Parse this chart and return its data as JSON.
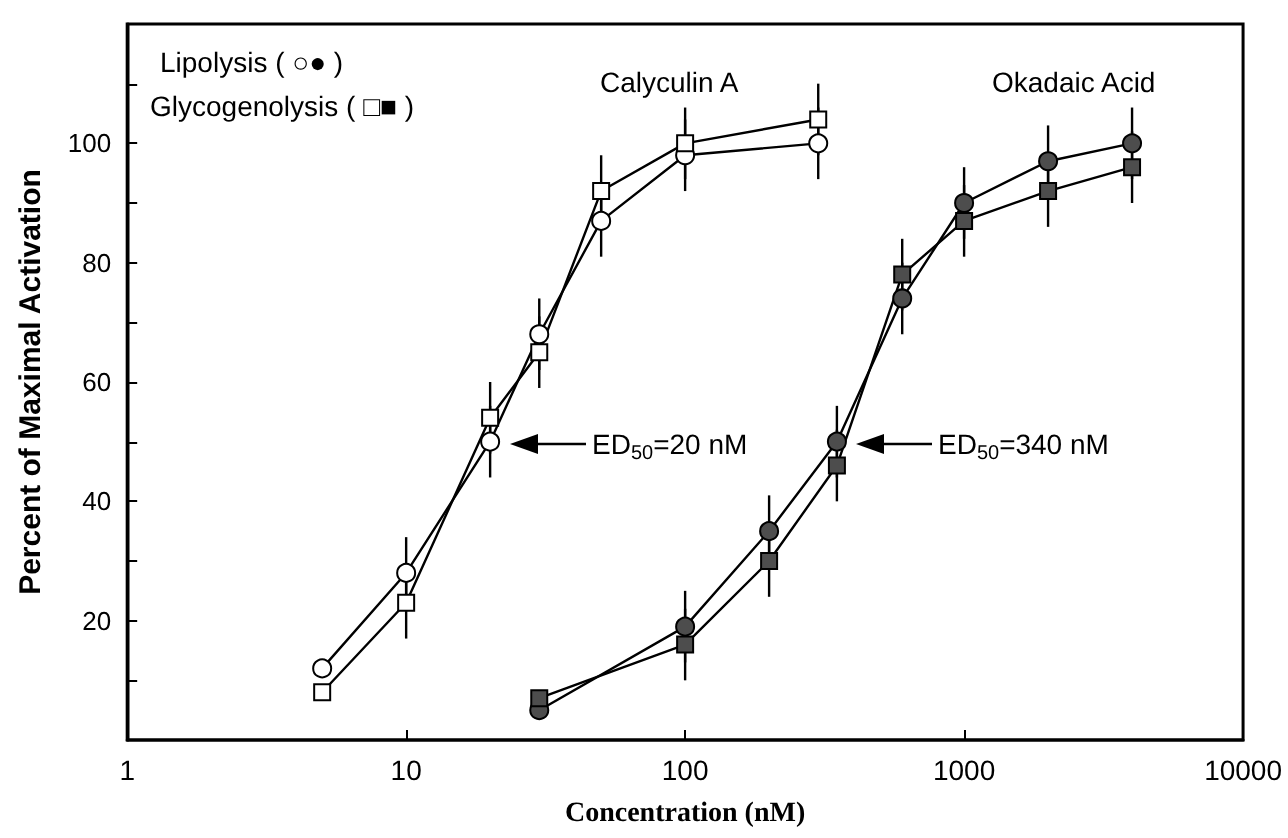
{
  "chart_data": {
    "type": "line",
    "xlabel": "Concentration (nM)",
    "ylabel": "Percent of Maximal Activation",
    "log": "x",
    "xlim": [
      1,
      10000
    ],
    "xticks": [
      1,
      10,
      100,
      1000,
      10000
    ],
    "ylim": [
      0,
      120
    ],
    "yticks": [
      {
        "value": 10,
        "label": null
      },
      20,
      {
        "value": 30,
        "label": null
      },
      40,
      {
        "value": 50,
        "label": null
      },
      60,
      {
        "value": 70,
        "label": null
      },
      80,
      {
        "value": 90,
        "label": null
      },
      100,
      {
        "value": 110,
        "label": null
      }
    ],
    "grid": false,
    "line_style": "solid",
    "series": [
      {
        "color": "#ffffff",
        "marker": "circle",
        "x": [
          5,
          10,
          20,
          30,
          50,
          100,
          300
        ],
        "values": [
          12,
          28,
          50,
          68,
          87,
          98,
          100
        ],
        "errors": [
          null,
          6,
          6,
          6,
          6,
          6,
          6
        ]
      },
      {
        "color": "#ffffff",
        "marker": "square",
        "x": [
          5,
          10,
          20,
          30,
          50,
          100,
          300
        ],
        "values": [
          8,
          23,
          54,
          65,
          92,
          100,
          104
        ],
        "errors": [
          null,
          6,
          6,
          6,
          6,
          6,
          6
        ]
      },
      {
        "color": "#4d4d4d",
        "marker": "circle",
        "x": [
          30,
          100,
          200,
          350,
          600,
          1000,
          2000,
          4000
        ],
        "values": [
          5,
          19,
          35,
          50,
          74,
          90,
          97,
          100
        ],
        "errors": [
          null,
          6,
          6,
          6,
          6,
          6,
          6,
          6
        ]
      },
      {
        "color": "#4d4d4d",
        "marker": "square",
        "x": [
          30,
          100,
          200,
          350,
          600,
          1000,
          2000,
          4000
        ],
        "values": [
          7,
          16,
          30,
          46,
          78,
          87,
          92,
          96
        ],
        "errors": [
          null,
          6,
          6,
          6,
          6,
          6,
          6,
          6
        ]
      }
    ],
    "annotations": [
      "Lipolysis ( ○● )",
      "Glycogenolysis ( □■ )",
      "Calyculin A",
      "Okadaic Acid",
      "ED$_{50}$=20 nM",
      "ED$_{50}$=340 nM"
    ]
  }
}
